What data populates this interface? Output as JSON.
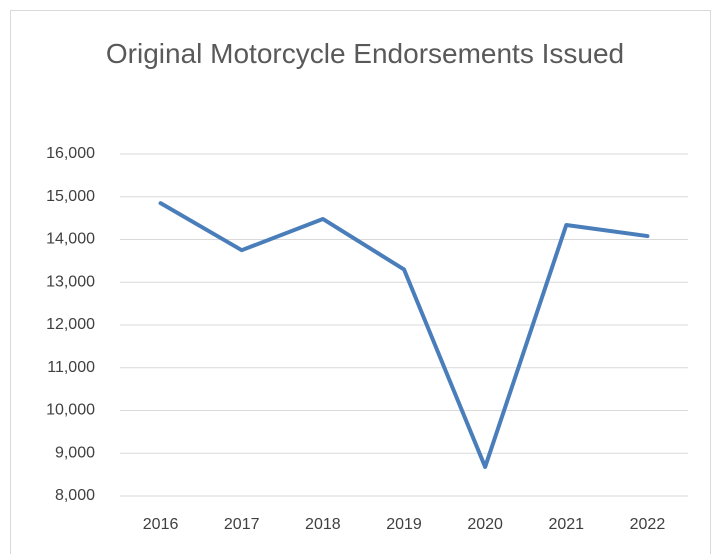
{
  "chart_data": {
    "type": "line",
    "title": "Original Motorcycle Endorsements Issued",
    "categories": [
      "2016",
      "2017",
      "2018",
      "2019",
      "2020",
      "2021",
      "2022"
    ],
    "series": [
      {
        "name": "Original Motorcycle Endorsements Issued",
        "color": "#4a7ebb",
        "values": [
          14850,
          13750,
          14480,
          13300,
          8680,
          14340,
          14080
        ]
      }
    ],
    "ylim": [
      8000,
      16000
    ],
    "yticks": [
      {
        "value": 8000,
        "label": "8,000"
      },
      {
        "value": 9000,
        "label": "9,000"
      },
      {
        "value": 10000,
        "label": "10,000"
      },
      {
        "value": 11000,
        "label": "11,000"
      },
      {
        "value": 12000,
        "label": "12,000"
      },
      {
        "value": 13000,
        "label": "13,000"
      },
      {
        "value": 14000,
        "label": "14,000"
      },
      {
        "value": 15000,
        "label": "15,000"
      },
      {
        "value": 16000,
        "label": "16,000"
      }
    ],
    "grid": true
  }
}
